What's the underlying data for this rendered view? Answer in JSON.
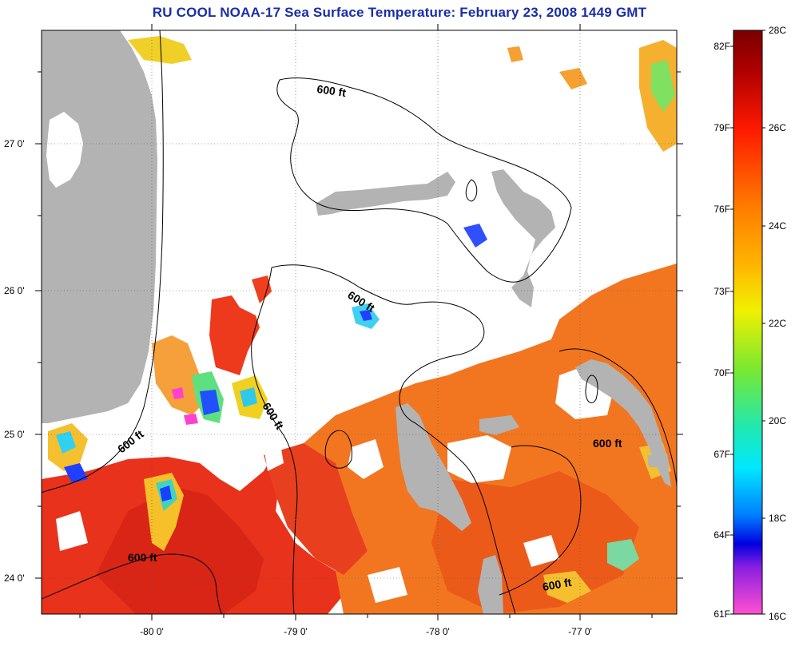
{
  "title": "RU COOL  NOAA-17  Sea Surface Temperature:  February 23, 2008 1449 GMT",
  "latitude_labels": [
    "27 0'",
    "26 0'",
    "25 0'",
    "24 0'"
  ],
  "longitude_labels": [
    "-80 0'",
    "-79 0'",
    "-78 0'",
    "-77 0'"
  ],
  "colorbar": {
    "fahrenheit": [
      "82F",
      "79F",
      "76F",
      "73F",
      "70F",
      "67F",
      "64F",
      "61F"
    ],
    "celsius": [
      "28C",
      "26C",
      "24C",
      "22C",
      "20C",
      "18C",
      "16C"
    ]
  },
  "contour_labels": [
    "600 ft",
    "600 ft",
    "600 ft",
    "600 ft",
    "600 ft",
    "600 ft"
  ],
  "colors": {
    "land": "#b3b3b3",
    "cloud": "#ffffff",
    "sst_warm": "#e9351f",
    "sst_mid": "#f07a1c",
    "title": "#1a2ea8"
  }
}
